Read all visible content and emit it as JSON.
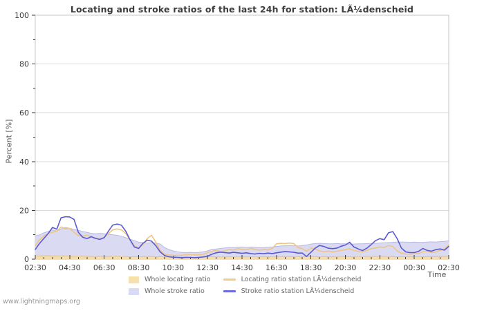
{
  "title": "Locating and stroke ratios of the last 24h for station: LÃ¼denscheid",
  "watermark": "www.lightningmaps.org",
  "y_axis": {
    "label": "Percent  [%]"
  },
  "x_axis": {
    "label": "Time"
  },
  "legend": {
    "items": [
      {
        "label": "Whole locating ratio",
        "swatch": "area",
        "color": "#f8e0ad"
      },
      {
        "label": "Whole stroke ratio",
        "swatch": "area",
        "color": "#d9dbf4"
      },
      {
        "label": "Locating ratio station LÃ¼denscheid",
        "swatch": "line",
        "color": "#f2cc86"
      },
      {
        "label": "Stroke ratio station LÃ¼denscheid",
        "swatch": "line",
        "color": "#6b6bdb"
      }
    ]
  },
  "colors": {
    "grid": "#d9d9d9",
    "border": "#c4c4c4",
    "tick": "#3a3a3a",
    "axis_text": "#3a3a3a"
  },
  "chart_data": {
    "type": "area",
    "title": "Locating and stroke ratios of the last 24h for station: LÃ¼denscheid",
    "xlabel": "Time",
    "ylabel": "Percent  [%]",
    "ylim": [
      0,
      100
    ],
    "y_major_ticks": [
      0,
      20,
      40,
      60,
      80,
      100
    ],
    "y_minor_ticks": [
      10,
      30,
      50,
      70,
      90
    ],
    "y_gridlines": [
      20,
      40,
      60,
      80
    ],
    "x_tick_labels": [
      "02:30",
      "04:30",
      "06:30",
      "08:30",
      "10:30",
      "12:30",
      "14:30",
      "16:30",
      "18:30",
      "20:30",
      "22:30",
      "00:30",
      "02:30"
    ],
    "x_span_hours": 24,
    "sample_interval_minutes": 15,
    "legend_position": "bottom",
    "grid": "horizontal-only",
    "series": [
      {
        "name": "Whole stroke ratio",
        "style": "area",
        "fill": "#dadaf3",
        "edge": "#b9b9e2",
        "values": [
          9.5,
          10.0,
          10.8,
          11.4,
          12.0,
          11.6,
          12.4,
          13.0,
          12.6,
          12.2,
          11.8,
          11.4,
          11.0,
          10.6,
          10.4,
          10.6,
          10.4,
          10.2,
          10.0,
          9.8,
          9.4,
          8.8,
          8.2,
          7.6,
          7.0,
          6.8,
          6.6,
          6.8,
          6.6,
          6.2,
          4.8,
          4.0,
          3.4,
          3.0,
          2.8,
          2.7,
          2.8,
          2.7,
          2.8,
          3.0,
          3.4,
          4.0,
          4.2,
          4.4,
          4.6,
          4.8,
          4.7,
          4.9,
          5.0,
          4.8,
          5.0,
          4.9,
          4.7,
          4.8,
          4.9,
          5.0,
          5.2,
          5.4,
          5.5,
          5.6,
          5.5,
          5.4,
          5.6,
          5.8,
          6.2,
          6.4,
          6.5,
          6.4,
          6.3,
          6.3,
          6.4,
          6.3,
          6.3,
          6.2,
          6.2,
          6.3,
          6.3,
          6.4,
          6.5,
          6.5,
          6.6,
          6.7,
          6.8,
          6.9,
          7.0,
          7.0,
          7.0,
          6.9,
          7.0,
          6.9,
          6.9,
          7.0,
          7.1,
          7.0,
          7.2,
          7.3,
          7.5
        ]
      },
      {
        "name": "Whole locating ratio",
        "style": "area",
        "fill": "#f4dcab",
        "edge": "#dfc291",
        "values": [
          1.3,
          1.3,
          1.4,
          1.4,
          1.3,
          1.3,
          1.4,
          1.3,
          1.3,
          1.2,
          1.2,
          1.2,
          1.2,
          1.1,
          1.1,
          1.1,
          1.1,
          1.1,
          1.2,
          1.2,
          1.1,
          1.1,
          1.0,
          1.0,
          1.0,
          1.0,
          1.1,
          1.1,
          1.0,
          1.0,
          1.0,
          0.9,
          0.9,
          0.9,
          0.9,
          0.9,
          0.8,
          0.8,
          0.9,
          0.9,
          0.9,
          1.0,
          1.0,
          0.9,
          0.9,
          1.0,
          0.9,
          0.9,
          1.0,
          0.9,
          1.0,
          0.9,
          0.9,
          1.0,
          1.0,
          0.9,
          1.0,
          1.0,
          1.1,
          1.0,
          1.0,
          1.1,
          1.0,
          1.0,
          1.1,
          1.0,
          1.0,
          1.1,
          1.0,
          1.0,
          1.1,
          1.1,
          1.0,
          1.0,
          1.1,
          1.1,
          1.0,
          1.1,
          1.1,
          1.1,
          1.1,
          1.1,
          1.1,
          1.0,
          1.0,
          1.0,
          1.0,
          1.0,
          0.9,
          1.0,
          1.0,
          1.0,
          1.0,
          1.0,
          1.1,
          1.1,
          1.2
        ]
      },
      {
        "name": "Locating ratio station LÃ¼denscheid",
        "style": "line",
        "color": "#eec584",
        "values": [
          5.5,
          8.0,
          9.5,
          10.5,
          11.0,
          11.5,
          13.2,
          12.4,
          12.6,
          11.0,
          9.7,
          9.4,
          9.8,
          9.2,
          8.6,
          8.2,
          9.0,
          10.5,
          12.0,
          12.4,
          12.0,
          10.5,
          8.0,
          5.5,
          4.6,
          6.0,
          8.5,
          9.8,
          7.0,
          3.5,
          2.0,
          1.7,
          1.6,
          1.6,
          1.6,
          1.8,
          1.8,
          1.7,
          1.8,
          2.0,
          2.6,
          3.2,
          3.6,
          3.0,
          3.4,
          4.0,
          3.7,
          4.3,
          4.0,
          3.8,
          4.4,
          4.0,
          3.7,
          4.0,
          3.8,
          4.4,
          6.3,
          6.5,
          6.4,
          6.6,
          6.4,
          4.8,
          4.3,
          3.2,
          4.6,
          4.2,
          3.4,
          3.0,
          3.3,
          3.0,
          3.2,
          3.6,
          3.9,
          4.3,
          3.6,
          3.2,
          3.0,
          3.6,
          4.3,
          4.6,
          5.0,
          4.8,
          5.6,
          5.2,
          3.4,
          2.4,
          2.1,
          2.0,
          2.2,
          2.3,
          3.0,
          3.3,
          2.7,
          2.9,
          3.6,
          4.1,
          5.8
        ]
      },
      {
        "name": "Stroke ratio station LÃ¼denscheid",
        "style": "line",
        "color": "#5a59d2",
        "values": [
          4.0,
          6.5,
          8.5,
          10.5,
          13.0,
          12.3,
          17.0,
          17.4,
          17.3,
          16.3,
          11.0,
          9.0,
          8.4,
          9.2,
          8.5,
          8.1,
          8.8,
          11.5,
          14.0,
          14.4,
          13.9,
          11.5,
          8.0,
          5.0,
          4.4,
          6.5,
          7.8,
          7.4,
          5.5,
          3.0,
          1.5,
          1.0,
          0.8,
          0.7,
          0.6,
          0.7,
          0.7,
          0.6,
          0.7,
          0.9,
          1.2,
          2.0,
          2.6,
          2.9,
          2.7,
          2.5,
          2.8,
          2.6,
          2.4,
          2.6,
          2.3,
          2.1,
          2.4,
          2.2,
          2.5,
          2.3,
          2.6,
          2.9,
          3.1,
          3.0,
          2.8,
          2.5,
          2.5,
          1.1,
          2.8,
          4.5,
          5.6,
          5.2,
          4.5,
          4.3,
          4.5,
          5.3,
          5.8,
          6.9,
          5.0,
          4.2,
          3.5,
          4.5,
          6.0,
          7.6,
          8.4,
          8.0,
          10.8,
          11.3,
          8.5,
          4.6,
          3.0,
          2.7,
          2.7,
          3.2,
          4.4,
          3.6,
          3.3,
          3.9,
          4.2,
          3.7,
          5.2
        ]
      }
    ]
  }
}
